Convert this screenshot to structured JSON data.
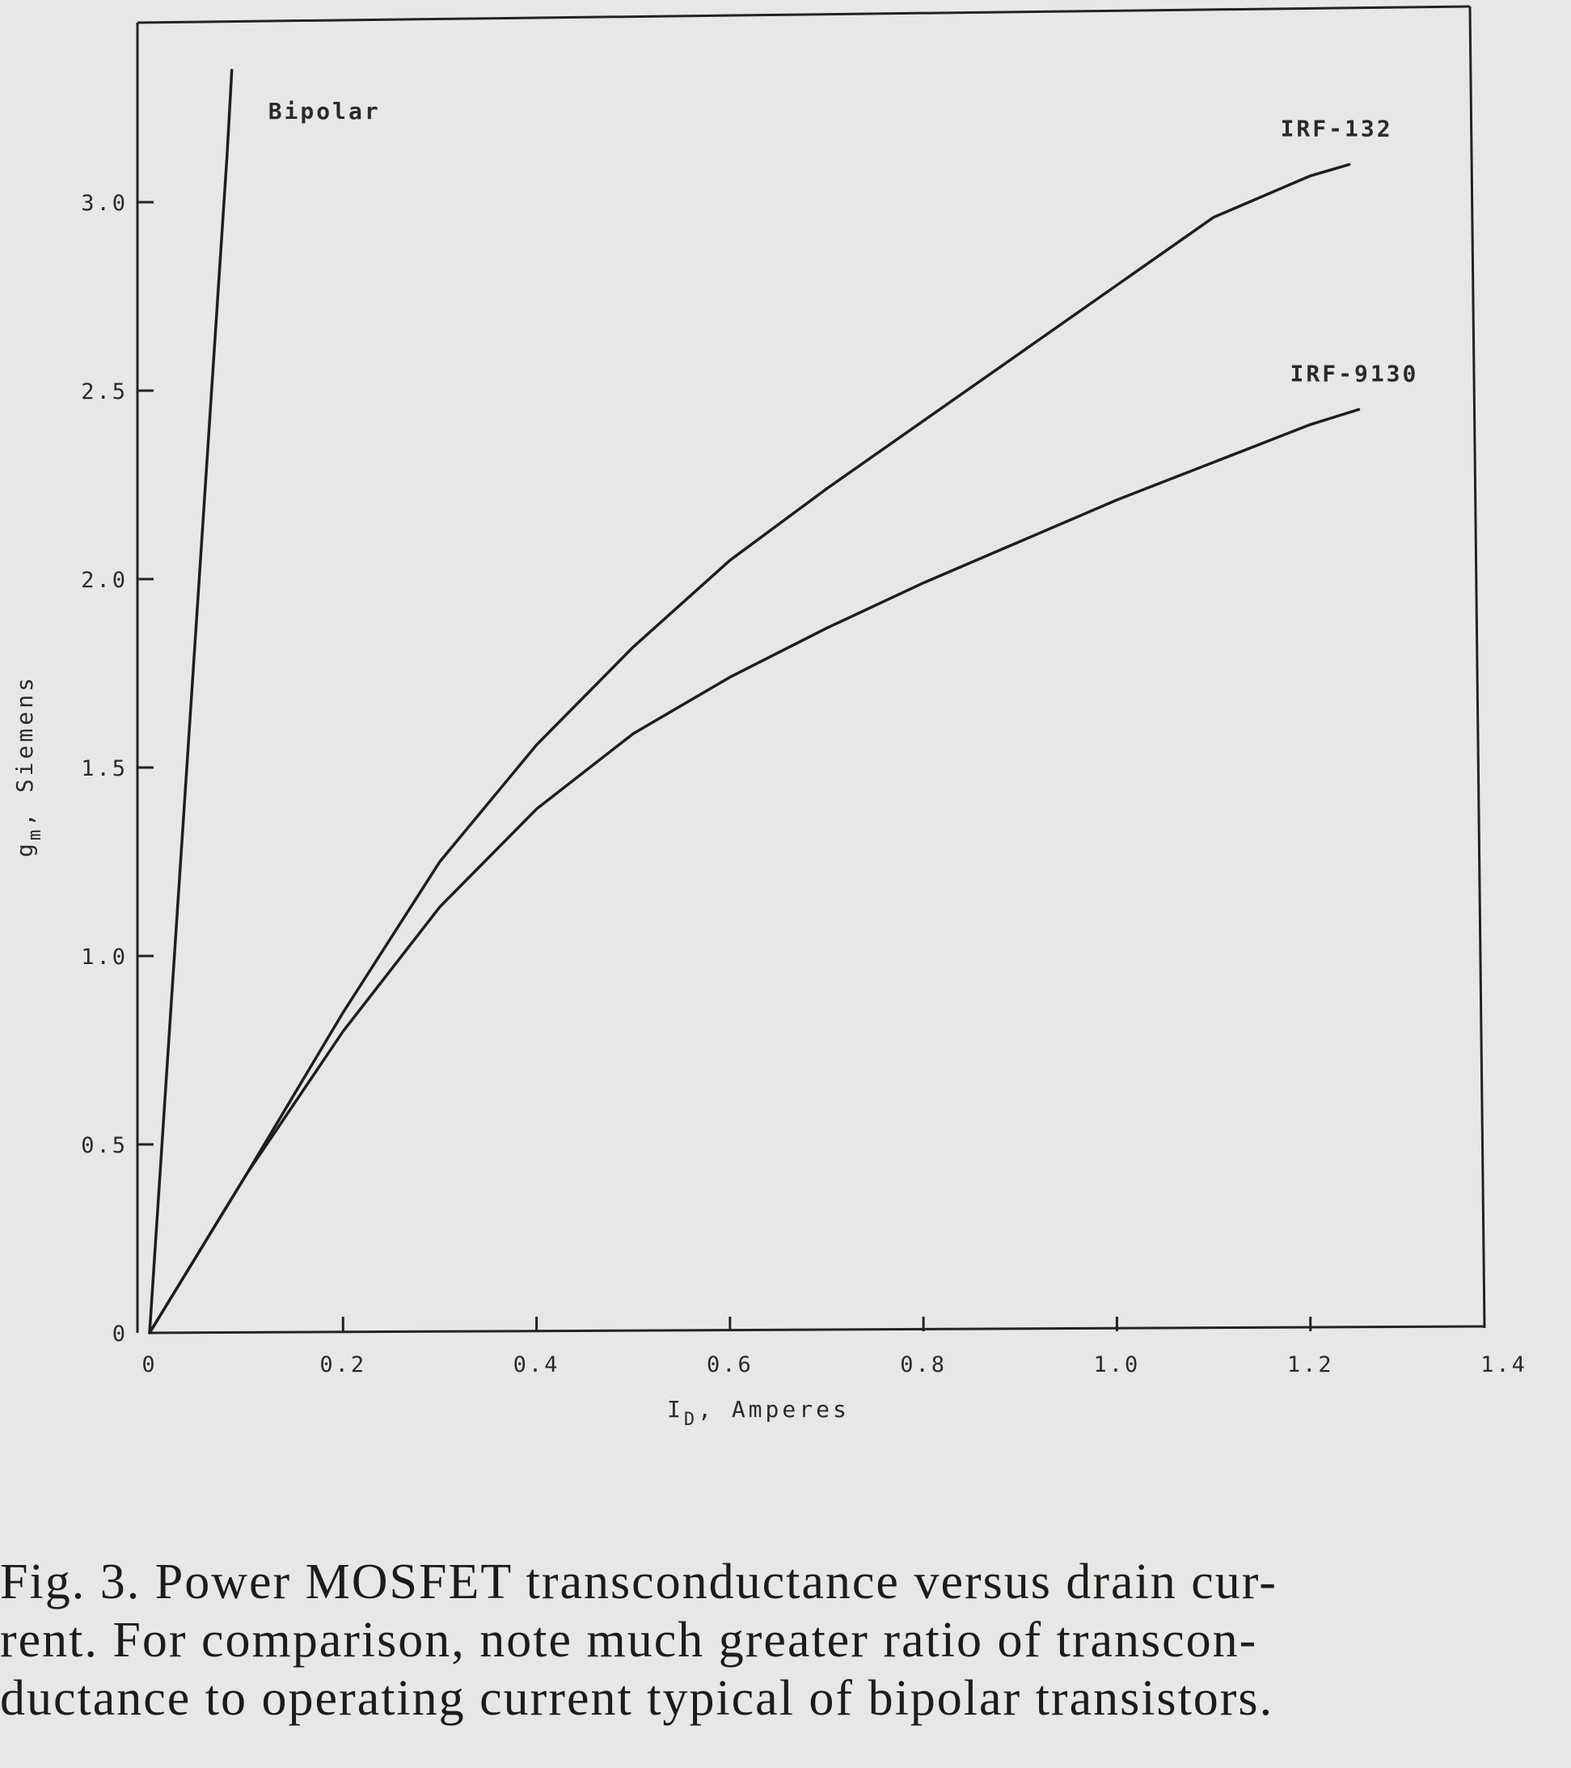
{
  "chart_data": {
    "type": "line",
    "title": "",
    "xlabel": "I_D, Amperes",
    "xlabel_main": "I",
    "xlabel_sub": "D",
    "xlabel_rest": ", Amperes",
    "ylabel": "g_m, Siemens",
    "ylabel_main": "g",
    "ylabel_sub": "m",
    "ylabel_rest": ", Siemens",
    "xlim": [
      0,
      1.4
    ],
    "ylim": [
      0,
      3.5
    ],
    "grid": false,
    "x_ticks": [
      {
        "value": 0,
        "label": "0"
      },
      {
        "value": 0.2,
        "label": "0.2"
      },
      {
        "value": 0.4,
        "label": "0.4"
      },
      {
        "value": 0.6,
        "label": "0.6"
      },
      {
        "value": 0.8,
        "label": "0.8"
      },
      {
        "value": 1.0,
        "label": "1.0"
      },
      {
        "value": 1.2,
        "label": "1.2"
      },
      {
        "value": 1.4,
        "label": "1.4"
      }
    ],
    "y_ticks": [
      {
        "value": 0,
        "label": "0"
      },
      {
        "value": 0.5,
        "label": "0.5"
      },
      {
        "value": 1.0,
        "label": "1.0"
      },
      {
        "value": 1.5,
        "label": "1.5"
      },
      {
        "value": 2.0,
        "label": "2.0"
      },
      {
        "value": 2.5,
        "label": "2.5"
      },
      {
        "value": 3.0,
        "label": "3.0"
      }
    ],
    "series": [
      {
        "name": "Bipolar",
        "color": "#1e1e1e",
        "x": [
          0.0,
          0.02,
          0.04,
          0.06,
          0.08,
          0.085
        ],
        "y": [
          0.0,
          0.78,
          1.56,
          2.34,
          3.12,
          3.35
        ]
      },
      {
        "name": "IRF-132",
        "color": "#1e1e1e",
        "x": [
          0.0,
          0.1,
          0.2,
          0.3,
          0.4,
          0.5,
          0.6,
          0.7,
          0.8,
          0.9,
          1.0,
          1.1,
          1.2,
          1.24
        ],
        "y": [
          0.0,
          0.42,
          0.85,
          1.25,
          1.56,
          1.82,
          2.05,
          2.24,
          2.42,
          2.6,
          2.78,
          2.96,
          3.07,
          3.1
        ]
      },
      {
        "name": "IRF-9130",
        "color": "#1e1e1e",
        "x": [
          0.0,
          0.1,
          0.2,
          0.3,
          0.4,
          0.5,
          0.6,
          0.7,
          0.8,
          0.9,
          1.0,
          1.1,
          1.2,
          1.25
        ],
        "y": [
          0.0,
          0.42,
          0.8,
          1.13,
          1.39,
          1.59,
          1.74,
          1.87,
          1.99,
          2.1,
          2.21,
          2.31,
          2.41,
          2.45
        ]
      }
    ]
  },
  "caption": "Fig. 3.  Power MOSFET transconductance versus drain cur-\nrent. For comparison, note much greater ratio of transcon-\nductance to operating current typical of bipolar transistors."
}
